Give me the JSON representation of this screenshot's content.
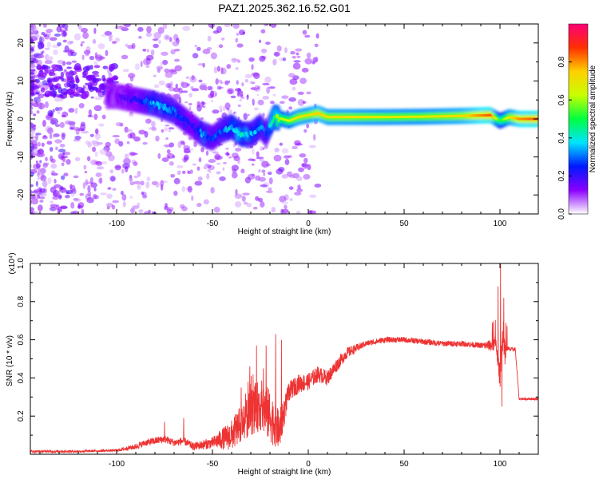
{
  "figure": {
    "title": "PAZ1.2025.362.16.52.G01"
  },
  "chart_data": [
    {
      "type": "heatmap",
      "name": "spectrogram",
      "xlabel": "Height of straight line (km)",
      "ylabel": "Frequency (Hz)",
      "xlim": [
        -145,
        120
      ],
      "ylim": [
        -25,
        25
      ],
      "xticks": [
        -100,
        -50,
        0,
        50,
        100
      ],
      "yticks": [
        -20,
        -10,
        0,
        10,
        20
      ],
      "colorbar": {
        "label": "Normalized spectral amplitude",
        "range": [
          0,
          1
        ],
        "ticks": [
          0.0,
          0.2,
          0.4,
          0.6,
          0.8
        ],
        "tick_labels": [
          "0.0",
          "0.2",
          "0.4",
          "0.6",
          "0.8"
        ],
        "colors": [
          "#ffffff",
          "#8a00ff",
          "#0018ff",
          "#00e4ff",
          "#00ff40",
          "#c8ff00",
          "#ffd000",
          "#ff3000",
          "#ff0078"
        ]
      },
      "ridge": {
        "description": "frequency of main spectral line vs height",
        "x": [
          -100,
          -90,
          -80,
          -70,
          -65,
          -60,
          -55,
          -50,
          -45,
          -40,
          -35,
          -30,
          -25,
          -22,
          -18,
          -15,
          -10,
          -5,
          0,
          5,
          10,
          20,
          40,
          60,
          80,
          95,
          100,
          105,
          110,
          120
        ],
        "freq": [
          6,
          5,
          4,
          2,
          0,
          -2,
          -4,
          -5,
          -3,
          -2,
          -4,
          -4,
          -2,
          -4,
          0.5,
          0.2,
          -0.5,
          0.5,
          1,
          1.5,
          0.5,
          0.5,
          0.5,
          0.6,
          0.8,
          1,
          -0.5,
          0.5,
          0,
          0
        ],
        "amplitude": [
          0.15,
          0.2,
          0.35,
          0.3,
          0.25,
          0.2,
          0.35,
          0.25,
          0.3,
          0.4,
          0.45,
          0.35,
          0.35,
          0.25,
          0.55,
          0.6,
          0.65,
          0.7,
          0.7,
          0.75,
          0.7,
          0.7,
          0.68,
          0.68,
          0.72,
          0.85,
          0.5,
          0.7,
          0.8,
          0.85
        ]
      }
    },
    {
      "type": "line",
      "name": "snr",
      "xlabel": "Height of straight line (km)",
      "ylabel": "SNR (10 * v/v)",
      "yscale_label": "(x10⁴)",
      "xlim": [
        -145,
        120
      ],
      "ylim": [
        0,
        1
      ],
      "xticks": [
        -100,
        -50,
        0,
        50,
        100
      ],
      "yticks": [
        0.2,
        0.4,
        0.6,
        0.8,
        1.0
      ],
      "ytick_labels": [
        "0.2",
        "0.4",
        "0.6",
        "0.8",
        "1.0"
      ],
      "color": "#ee3333",
      "envelope": {
        "x": [
          -145,
          -120,
          -100,
          -90,
          -85,
          -80,
          -75,
          -70,
          -65,
          -60,
          -55,
          -50,
          -45,
          -40,
          -35,
          -30,
          -25,
          -20,
          -15,
          -12,
          -10,
          -5,
          0,
          5,
          10,
          15,
          20,
          30,
          40,
          50,
          60,
          70,
          80,
          90,
          95,
          98,
          100,
          101,
          103,
          106,
          108,
          110,
          115,
          120
        ],
        "y": [
          0.015,
          0.015,
          0.02,
          0.04,
          0.06,
          0.07,
          0.08,
          0.06,
          0.07,
          0.04,
          0.05,
          0.06,
          0.08,
          0.1,
          0.16,
          0.22,
          0.26,
          0.2,
          0.12,
          0.25,
          0.33,
          0.37,
          0.38,
          0.42,
          0.4,
          0.47,
          0.53,
          0.58,
          0.6,
          0.6,
          0.59,
          0.58,
          0.58,
          0.57,
          0.57,
          0.58,
          0.4,
          0.6,
          0.55,
          0.55,
          0.55,
          0.29,
          0.29,
          0.29
        ]
      },
      "noise": {
        "x": [
          -145,
          -100,
          -90,
          -80,
          -60,
          -50,
          -40,
          -30,
          -25,
          -20,
          -15,
          -12,
          -10,
          -5,
          0,
          10,
          20,
          30,
          90,
          98,
          101,
          103,
          106,
          108,
          110,
          120
        ],
        "y": [
          0.006,
          0.006,
          0.015,
          0.02,
          0.02,
          0.03,
          0.08,
          0.12,
          0.14,
          0.14,
          0.1,
          0.07,
          0.05,
          0.05,
          0.045,
          0.04,
          0.03,
          0.015,
          0.015,
          0.04,
          0.08,
          0.02,
          0.01,
          0.01,
          0.006,
          0.006
        ]
      },
      "spikes": [
        {
          "x": -75,
          "y": 0.17
        },
        {
          "x": -65,
          "y": 0.19
        },
        {
          "x": -35,
          "y": 0.35
        },
        {
          "x": -27,
          "y": 0.57
        },
        {
          "x": -22,
          "y": 0.57
        },
        {
          "x": -17,
          "y": 0.63
        },
        {
          "x": -14,
          "y": 0.6
        },
        {
          "x": 96,
          "y": 0.69
        },
        {
          "x": 99,
          "y": 0.88
        },
        {
          "x": 100.3,
          "y": 1.0
        },
        {
          "x": 101,
          "y": 0.25
        },
        {
          "x": 102,
          "y": 0.82
        }
      ]
    }
  ]
}
